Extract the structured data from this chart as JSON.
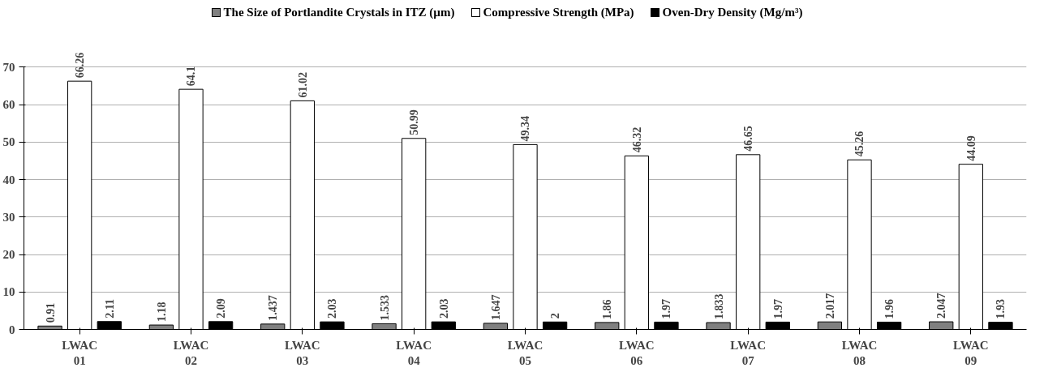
{
  "chart_data": {
    "type": "bar",
    "categories": [
      "LWAC 01",
      "LWAC 02",
      "LWAC 03",
      "LWAC 04",
      "LWAC 05",
      "LWAC 06",
      "LWAC 07",
      "LWAC 08",
      "LWAC 09"
    ],
    "series": [
      {
        "name": "The Size of Portlandite Crystals in ITZ (µm)",
        "color": "#808080",
        "values": [
          0.91,
          1.18,
          1.437,
          1.533,
          1.647,
          1.86,
          1.833,
          2.017,
          2.047
        ]
      },
      {
        "name": "Compressive Strength (MPa)",
        "color": "#ffffff",
        "values": [
          66.26,
          64.1,
          61.02,
          50.99,
          49.34,
          46.32,
          46.65,
          45.26,
          44.09
        ]
      },
      {
        "name": "Oven-Dry Density (Mg/m³)",
        "color": "#000000",
        "values": [
          2.11,
          2.09,
          2.03,
          2.03,
          2,
          1.97,
          1.97,
          1.96,
          1.93
        ]
      }
    ],
    "ylim": [
      0,
      70
    ],
    "yticks": [
      0,
      10,
      20,
      30,
      40,
      50,
      60,
      70
    ],
    "grid": "y",
    "legend": "top",
    "data_labels": true
  }
}
